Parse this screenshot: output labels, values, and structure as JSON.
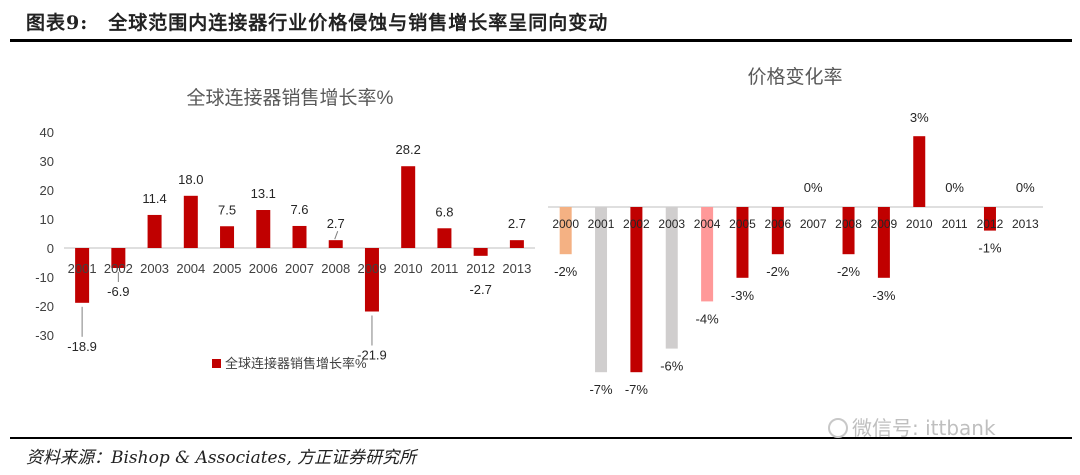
{
  "figure": {
    "title": "图表9:　全球范围内连接器行业价格侵蚀与销售增长率呈同向变动",
    "source": "资料来源：Bishop & Associates, 方正证券研究所",
    "watermark": "微信号: ittbank"
  },
  "chart_data": [
    {
      "type": "bar",
      "title": "全球连接器销售增长率%",
      "categories": [
        "2001",
        "2002",
        "2003",
        "2004",
        "2005",
        "2006",
        "2007",
        "2008",
        "2009",
        "2010",
        "2011",
        "2012",
        "2013"
      ],
      "series": [
        {
          "name": "全球连接器销售增长率%",
          "values": [
            -18.9,
            -6.9,
            11.4,
            18.0,
            7.5,
            13.1,
            7.6,
            2.7,
            -21.9,
            28.2,
            6.8,
            -2.7,
            2.7
          ],
          "color": "#c00000"
        }
      ],
      "data_labels": [
        "-18.9",
        "-6.9",
        "11.4",
        "18.0",
        "7.5",
        "13.1",
        "7.6",
        "2.7",
        "-21.9",
        "28.2",
        "6.8",
        "-2.7",
        "2.7"
      ],
      "yticks": [
        "40",
        "30",
        "20",
        "10",
        "0",
        "-10",
        "-20",
        "-30"
      ],
      "ylim": [
        -30,
        40
      ],
      "legend_position": "bottom",
      "grid": false
    },
    {
      "type": "bar",
      "title": "价格变化率",
      "categories": [
        "2000",
        "2001",
        "2002",
        "2003",
        "2004",
        "2005",
        "2006",
        "2007",
        "2008",
        "2009",
        "2010",
        "2011",
        "2012",
        "2013"
      ],
      "values": [
        -2,
        -7,
        -7,
        -6,
        -4,
        -3,
        -2,
        0,
        -2,
        -3,
        3,
        0,
        -1,
        0
      ],
      "data_labels": [
        "-2%",
        "-7%",
        "-7%",
        "-6%",
        "-4%",
        "-3%",
        "-2%",
        "0%",
        "-2%",
        "-3%",
        "3%",
        "0%",
        "-1%",
        "0%"
      ],
      "bar_colors": [
        "#f4b183",
        "#d0cece",
        "#c00000",
        "#d0cece",
        "#ff9999",
        "#c00000",
        "#c00000",
        "#c00000",
        "#c00000",
        "#c00000",
        "#c00000",
        "#c00000",
        "#c00000",
        "#c00000"
      ],
      "legend_position": "none",
      "grid": false
    }
  ]
}
